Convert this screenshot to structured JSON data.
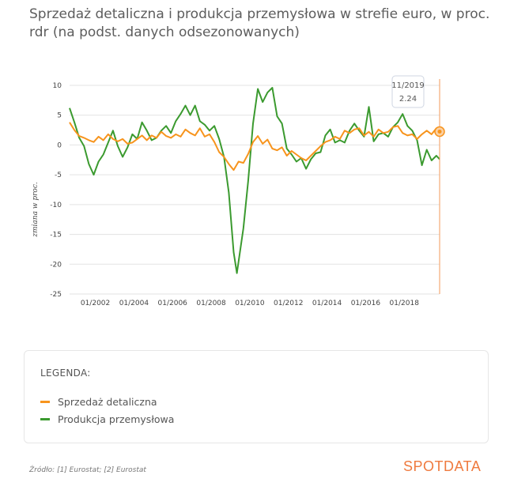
{
  "title": "Sprzedaż detaliczna i produkcja przemysłowa w strefie euro, w proc. rdr (na podst. danych odsezonowanych)",
  "legend": {
    "title": "LEGENDA:",
    "items": [
      {
        "label": "Sprzedaż detaliczna",
        "color": "#f7941d"
      },
      {
        "label": "Produkcja przemysłowa",
        "color": "#3b9a2f"
      }
    ]
  },
  "source": "Źródło: [1] Eurostat; [2] Eurostat",
  "brand": "SPOTDATA",
  "tooltip": {
    "date": "11/2019",
    "value": "2.24"
  },
  "chart_data": {
    "type": "line",
    "title": "Sprzedaż detaliczna i produkcja przemysłowa w strefie euro, w proc. rdr (na podst. danych odsezonowanych)",
    "ylabel": "zmiana w proc.",
    "ylim": [
      -25,
      10
    ],
    "yticks": [
      10,
      5,
      0,
      -5,
      -10,
      -15,
      -20,
      -25
    ],
    "xticks": [
      "01/2002",
      "01/2004",
      "01/2006",
      "01/2008",
      "01/2010",
      "01/2012",
      "01/2014",
      "01/2016",
      "01/2018"
    ],
    "grid": "horizontal",
    "series": [
      {
        "name": "Sprzedaż detaliczna",
        "color": "#f7941d",
        "points": [
          [
            "2000-09",
            3.8
          ],
          [
            "2000-12",
            2.5
          ],
          [
            "2001-03",
            1.5
          ],
          [
            "2001-06",
            1.2
          ],
          [
            "2001-09",
            0.8
          ],
          [
            "2001-12",
            0.5
          ],
          [
            "2002-03",
            1.4
          ],
          [
            "2002-06",
            0.8
          ],
          [
            "2002-09",
            1.8
          ],
          [
            "2002-12",
            1.0
          ],
          [
            "2003-03",
            0.6
          ],
          [
            "2003-06",
            1.0
          ],
          [
            "2003-09",
            0.2
          ],
          [
            "2003-12",
            0.4
          ],
          [
            "2004-03",
            1.0
          ],
          [
            "2004-06",
            1.6
          ],
          [
            "2004-09",
            0.8
          ],
          [
            "2004-12",
            1.6
          ],
          [
            "2005-03",
            1.2
          ],
          [
            "2005-06",
            2.2
          ],
          [
            "2005-09",
            1.5
          ],
          [
            "2005-12",
            1.2
          ],
          [
            "2006-03",
            1.8
          ],
          [
            "2006-06",
            1.4
          ],
          [
            "2006-09",
            2.6
          ],
          [
            "2006-12",
            2.0
          ],
          [
            "2007-03",
            1.6
          ],
          [
            "2007-06",
            2.8
          ],
          [
            "2007-09",
            1.4
          ],
          [
            "2007-12",
            1.8
          ],
          [
            "2008-03",
            0.5
          ],
          [
            "2008-06",
            -1.2
          ],
          [
            "2008-09",
            -2.0
          ],
          [
            "2008-12",
            -3.2
          ],
          [
            "2009-03",
            -4.2
          ],
          [
            "2009-06",
            -2.8
          ],
          [
            "2009-09",
            -3.0
          ],
          [
            "2009-12",
            -1.5
          ],
          [
            "2010-03",
            0.5
          ],
          [
            "2010-06",
            1.5
          ],
          [
            "2010-09",
            0.2
          ],
          [
            "2010-12",
            0.9
          ],
          [
            "2011-03",
            -0.6
          ],
          [
            "2011-06",
            -0.9
          ],
          [
            "2011-09",
            -0.4
          ],
          [
            "2011-12",
            -1.8
          ],
          [
            "2012-03",
            -1.0
          ],
          [
            "2012-06",
            -1.6
          ],
          [
            "2012-09",
            -2.2
          ],
          [
            "2012-12",
            -2.6
          ],
          [
            "2013-03",
            -1.8
          ],
          [
            "2013-06",
            -1.0
          ],
          [
            "2013-09",
            -0.2
          ],
          [
            "2013-12",
            0.5
          ],
          [
            "2014-03",
            0.8
          ],
          [
            "2014-06",
            1.4
          ],
          [
            "2014-09",
            1.0
          ],
          [
            "2014-12",
            2.4
          ],
          [
            "2015-03",
            2.0
          ],
          [
            "2015-06",
            2.6
          ],
          [
            "2015-09",
            2.8
          ],
          [
            "2015-12",
            1.6
          ],
          [
            "2016-03",
            2.2
          ],
          [
            "2016-06",
            1.4
          ],
          [
            "2016-09",
            2.6
          ],
          [
            "2016-12",
            2.0
          ],
          [
            "2017-03",
            2.2
          ],
          [
            "2017-06",
            3.0
          ],
          [
            "2017-09",
            3.2
          ],
          [
            "2017-12",
            2.0
          ],
          [
            "2018-03",
            1.6
          ],
          [
            "2018-06",
            1.8
          ],
          [
            "2018-09",
            1.0
          ],
          [
            "2018-12",
            1.8
          ],
          [
            "2019-03",
            2.4
          ],
          [
            "2019-06",
            1.8
          ],
          [
            "2019-09",
            2.8
          ],
          [
            "2019-11",
            2.24
          ]
        ]
      },
      {
        "name": "Produkcja przemysłowa",
        "color": "#3b9a2f",
        "points": [
          [
            "2000-09",
            6.2
          ],
          [
            "2000-12",
            3.8
          ],
          [
            "2001-03",
            1.2
          ],
          [
            "2001-06",
            -0.2
          ],
          [
            "2001-09",
            -3.2
          ],
          [
            "2001-12",
            -5.0
          ],
          [
            "2002-03",
            -2.8
          ],
          [
            "2002-06",
            -1.6
          ],
          [
            "2002-09",
            0.4
          ],
          [
            "2002-12",
            2.4
          ],
          [
            "2003-03",
            -0.2
          ],
          [
            "2003-06",
            -2.0
          ],
          [
            "2003-09",
            -0.4
          ],
          [
            "2003-12",
            1.8
          ],
          [
            "2004-03",
            1.0
          ],
          [
            "2004-06",
            3.8
          ],
          [
            "2004-09",
            2.4
          ],
          [
            "2004-12",
            0.8
          ],
          [
            "2005-03",
            1.2
          ],
          [
            "2005-06",
            2.4
          ],
          [
            "2005-09",
            3.2
          ],
          [
            "2005-12",
            2.0
          ],
          [
            "2006-03",
            4.0
          ],
          [
            "2006-06",
            5.2
          ],
          [
            "2006-09",
            6.6
          ],
          [
            "2006-12",
            5.0
          ],
          [
            "2007-03",
            6.6
          ],
          [
            "2007-06",
            4.0
          ],
          [
            "2007-09",
            3.4
          ],
          [
            "2007-12",
            2.4
          ],
          [
            "2008-03",
            3.2
          ],
          [
            "2008-06",
            1.0
          ],
          [
            "2008-09",
            -2.0
          ],
          [
            "2008-12",
            -8.0
          ],
          [
            "2009-03",
            -18.0
          ],
          [
            "2009-05",
            -21.5
          ],
          [
            "2009-09",
            -14.0
          ],
          [
            "2009-12",
            -6.0
          ],
          [
            "2010-03",
            3.6
          ],
          [
            "2010-06",
            9.4
          ],
          [
            "2010-09",
            7.2
          ],
          [
            "2010-12",
            8.8
          ],
          [
            "2011-03",
            9.6
          ],
          [
            "2011-06",
            4.8
          ],
          [
            "2011-09",
            3.6
          ],
          [
            "2011-12",
            -0.6
          ],
          [
            "2012-03",
            -1.6
          ],
          [
            "2012-06",
            -2.8
          ],
          [
            "2012-09",
            -2.2
          ],
          [
            "2012-12",
            -4.0
          ],
          [
            "2013-03",
            -2.4
          ],
          [
            "2013-06",
            -1.4
          ],
          [
            "2013-09",
            -1.2
          ],
          [
            "2013-12",
            1.6
          ],
          [
            "2014-03",
            2.6
          ],
          [
            "2014-06",
            0.4
          ],
          [
            "2014-09",
            0.8
          ],
          [
            "2014-12",
            0.4
          ],
          [
            "2015-03",
            2.4
          ],
          [
            "2015-06",
            3.6
          ],
          [
            "2015-09",
            2.4
          ],
          [
            "2015-12",
            1.4
          ],
          [
            "2016-03",
            6.4
          ],
          [
            "2016-06",
            0.6
          ],
          [
            "2016-09",
            1.8
          ],
          [
            "2016-12",
            2.0
          ],
          [
            "2017-03",
            1.4
          ],
          [
            "2017-06",
            3.0
          ],
          [
            "2017-09",
            3.8
          ],
          [
            "2017-12",
            5.2
          ],
          [
            "2018-03",
            3.2
          ],
          [
            "2018-06",
            2.4
          ],
          [
            "2018-09",
            0.8
          ],
          [
            "2018-12",
            -3.4
          ],
          [
            "2019-03",
            -0.8
          ],
          [
            "2019-06",
            -2.6
          ],
          [
            "2019-09",
            -1.8
          ],
          [
            "2019-11",
            -2.4
          ]
        ]
      }
    ]
  }
}
